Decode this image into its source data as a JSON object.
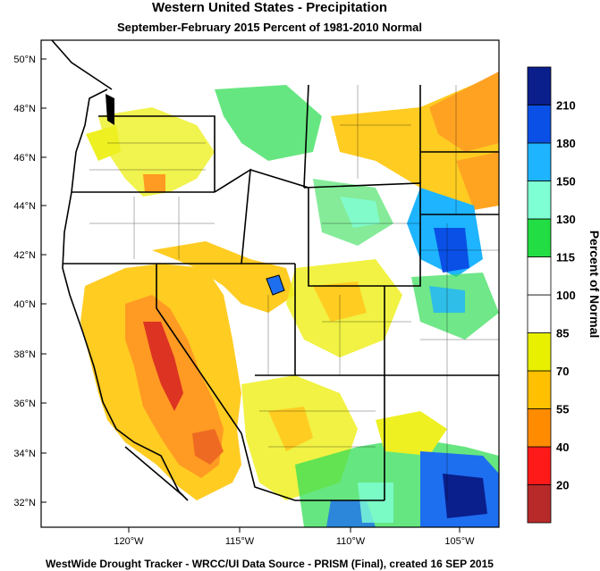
{
  "title": "Western United States - Precipitation",
  "subtitle": "September-February 2015  Percent of 1981-2010 Normal",
  "credit": "WestWide Drought Tracker - WRCC/UI  Data Source - PRISM (Final), created 16 SEP 2015",
  "lat_ticks": [
    "50°N",
    "48°N",
    "46°N",
    "44°N",
    "42°N",
    "40°N",
    "38°N",
    "36°N",
    "34°N",
    "32°N"
  ],
  "lon_ticks": [
    "120°W",
    "115°W",
    "110°W",
    "105°W"
  ],
  "legend": {
    "title": "Percent of Normal",
    "labels": [
      "20",
      "40",
      "55",
      "70",
      "85",
      "100",
      "115",
      "130",
      "150",
      "180",
      "210"
    ],
    "colors": [
      "#b82a2a",
      "#ff1a1a",
      "#ff8c00",
      "#ffc000",
      "#e8f000",
      "#ffffff",
      "#ffffff",
      "#22dd44",
      "#7fffd4",
      "#1eb4ff",
      "#0a50e6",
      "#0a1e8c"
    ]
  },
  "colors": {
    "dry_severe": "#dd3322",
    "dry": "#ff9a22",
    "dry_moderate": "#ffcc22",
    "slightly_dry": "#eef022",
    "normal": "#ffffff",
    "wet": "#33dd55",
    "very_wet": "#1e6ef0",
    "extreme_wet": "#0a1e8c",
    "ocean": "#ffffff"
  }
}
